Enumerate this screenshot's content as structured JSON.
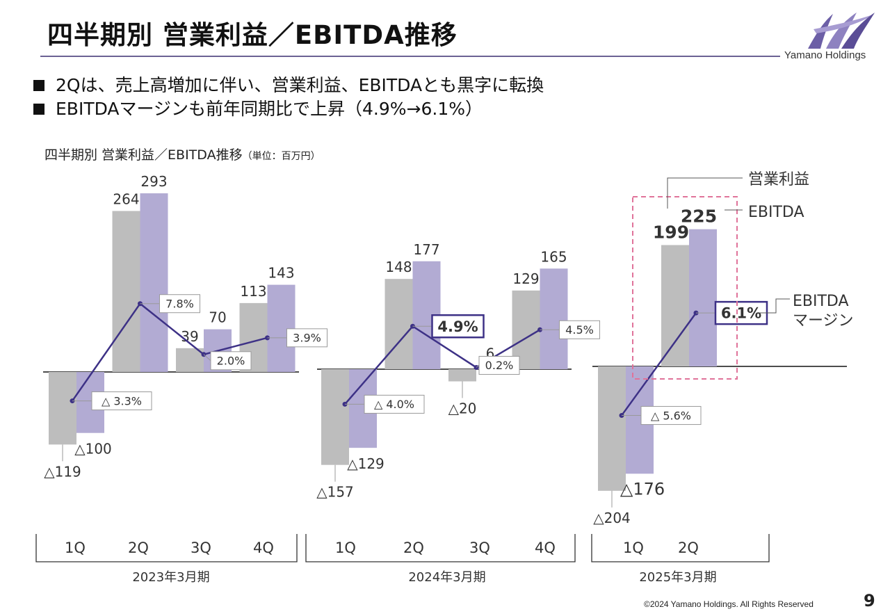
{
  "header": {
    "title": "四半期別 営業利益／EBITDA推移",
    "logo_text": "Yamano Holdings"
  },
  "bullets": [
    "2Qは、売上高増加に伴い、営業利益、EBITDAとも黒字に転換",
    "EBITDAマージンも前年同期比で上昇（4.9%→6.1%）"
  ],
  "chart_title": {
    "main": "四半期別 営業利益／EBITDA推移",
    "unit": "（単位：百万円）"
  },
  "colors": {
    "operating_profit": "#bdbdbd",
    "ebitda": "#b2abd3",
    "margin_line": "#3d3186",
    "highlight_box": "#e0739a"
  },
  "chart_data": {
    "type": "bar",
    "title": "四半期別 営業利益／EBITDA推移",
    "unit": "（単位：百万円）",
    "legend": [
      "営業利益",
      "EBITDA",
      "EBITDAマージン"
    ],
    "periods": [
      {
        "label": "2023年3月期",
        "quarters": [
          "1Q",
          "2Q",
          "3Q",
          "4Q"
        ],
        "operating_profit": [
          -119,
          264,
          39,
          113
        ],
        "ebitda": [
          -100,
          293,
          70,
          143
        ],
        "margin": [
          -3.3,
          7.8,
          2.0,
          3.9
        ],
        "op_labels": [
          "△119",
          "264",
          "39",
          "113"
        ],
        "ebitda_labels": [
          "△100",
          "293",
          "70",
          "143"
        ],
        "margin_labels": [
          "△ 3.3%",
          "7.8%",
          "2.0%",
          "3.9%"
        ]
      },
      {
        "label": "2024年3月期",
        "quarters": [
          "1Q",
          "2Q",
          "3Q",
          "4Q"
        ],
        "operating_profit": [
          -157,
          148,
          -20,
          129
        ],
        "ebitda": [
          -129,
          177,
          6,
          165
        ],
        "margin": [
          -4.0,
          4.9,
          0.2,
          4.5
        ],
        "op_labels": [
          "△157",
          "148",
          "△20",
          "129"
        ],
        "ebitda_labels": [
          "△129",
          "177",
          "6",
          "165"
        ],
        "margin_labels": [
          "△ 4.0%",
          "4.9%",
          "0.2%",
          "4.5%"
        ]
      },
      {
        "label": "2025年3月期",
        "quarters": [
          "1Q",
          "2Q"
        ],
        "operating_profit": [
          -204,
          199
        ],
        "ebitda": [
          -176,
          225
        ],
        "margin": [
          -5.6,
          6.1
        ],
        "op_labels": [
          "△204",
          "199"
        ],
        "ebitda_labels": [
          "△176",
          "225"
        ],
        "margin_labels": [
          "△ 5.6%",
          "6.1%"
        ]
      }
    ],
    "annotations": {
      "operating_profit": "営業利益",
      "ebitda": "EBITDA",
      "margin_line1": "EBITDA",
      "margin_line2": "マージン"
    }
  },
  "footer": {
    "copyright": "©2024 Yamano Holdings. All Rights Reserved",
    "page_number": "9"
  }
}
